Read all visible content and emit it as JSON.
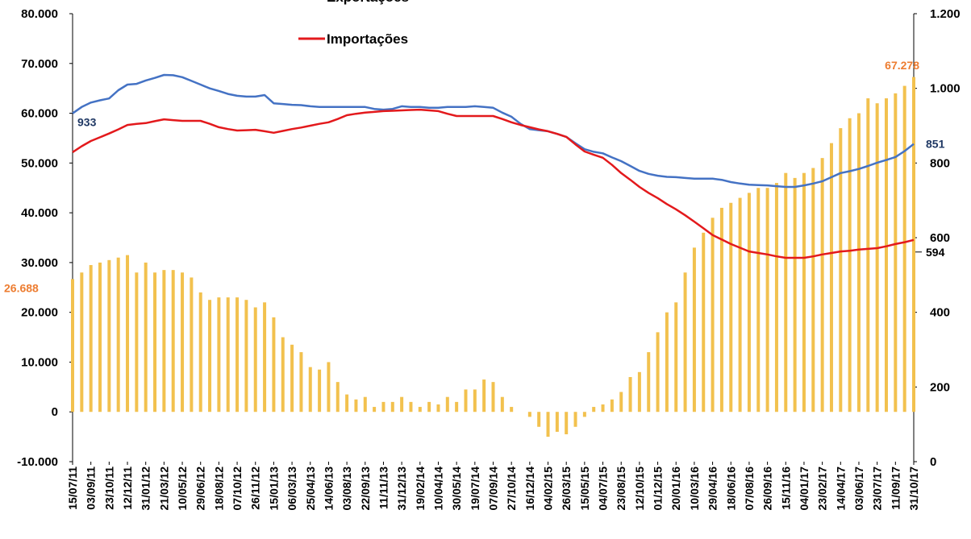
{
  "chart_data": {
    "type": "combo",
    "categories": [
      "15/07/11",
      null,
      "03/09/11",
      null,
      "23/10/11",
      null,
      "12/12/11",
      null,
      "31/01/12",
      null,
      "21/03/12",
      null,
      "10/05/12",
      null,
      "29/06/12",
      null,
      "18/08/12",
      null,
      "07/10/12",
      null,
      "26/11/12",
      null,
      "15/01/13",
      null,
      "06/03/13",
      null,
      "25/04/13",
      null,
      "14/06/13",
      null,
      "03/08/13",
      null,
      "22/09/13",
      null,
      "11/11/13",
      null,
      "31/12/13",
      null,
      "19/02/14",
      null,
      "10/04/14",
      null,
      "30/05/14",
      null,
      "19/07/14",
      null,
      "07/09/14",
      null,
      "27/10/14",
      null,
      "16/12/14",
      null,
      "04/02/15",
      null,
      "26/03/15",
      null,
      "15/05/15",
      null,
      "04/07/15",
      null,
      "23/08/15",
      null,
      "12/10/15",
      null,
      "01/12/15",
      null,
      "20/01/16",
      null,
      "10/03/16",
      null,
      "29/04/16",
      null,
      "18/06/16",
      null,
      "07/08/16",
      null,
      "26/09/16",
      null,
      "15/11/16",
      null,
      "04/01/17",
      null,
      "23/02/17",
      null,
      "14/04/17",
      null,
      "03/06/17",
      null,
      "23/07/17",
      null,
      "11/09/17",
      null,
      "31/10/17"
    ],
    "ylim": [
      -10000,
      80000
    ],
    "yticks": [
      {
        "value": -10000,
        "label": "-10.000"
      },
      0,
      {
        "value": 10000,
        "label": "10.000"
      },
      {
        "value": 20000,
        "label": "20.000"
      },
      {
        "value": 30000,
        "label": "30.000"
      },
      {
        "value": 40000,
        "label": "40.000"
      },
      {
        "value": 50000,
        "label": "50.000"
      },
      {
        "value": 60000,
        "label": "60.000"
      },
      {
        "value": 70000,
        "label": "70.000"
      },
      {
        "value": 80000,
        "label": "80.000"
      }
    ],
    "y2lim": [
      0,
      1200
    ],
    "y2ticks": [
      0,
      200,
      400,
      600,
      800,
      {
        "value": 1000,
        "label": "1.000"
      },
      {
        "value": 1200,
        "label": "1.200"
      }
    ],
    "series": [
      {
        "type": "bar",
        "color": "#f2c14e",
        "values": [
          26688,
          28000,
          29500,
          30000,
          30500,
          31000,
          31500,
          28000,
          30000,
          28000,
          28500,
          28500,
          28000,
          27000,
          24000,
          22500,
          23000,
          23000,
          23000,
          22500,
          21000,
          22000,
          19000,
          15000,
          13500,
          12000,
          9000,
          8500,
          10000,
          6000,
          3500,
          2500,
          3000,
          1000,
          2000,
          2000,
          3000,
          2000,
          1000,
          2000,
          1500,
          3000,
          2000,
          4500,
          4500,
          6500,
          6000,
          3000,
          1000,
          0,
          -1000,
          -3000,
          -5000,
          -4000,
          -4500,
          -3000,
          -1000,
          1000,
          1500,
          2500,
          4000,
          7000,
          8000,
          12000,
          16000,
          20000,
          22000,
          28000,
          33000,
          36000,
          39000,
          41000,
          42000,
          43000,
          44000,
          45000,
          45000,
          46000,
          48000,
          47000,
          48000,
          49000,
          51000,
          54000,
          57000,
          59000,
          60000,
          63000,
          62000,
          63000,
          64000,
          65500,
          67278
        ],
        "value_labels": [
          "26.688",
          null,
          null,
          null,
          null,
          null,
          null,
          null,
          null,
          null,
          null,
          null,
          null,
          null,
          null,
          null,
          null,
          null,
          null,
          null,
          null,
          null,
          null,
          null,
          null,
          null,
          null,
          null,
          null,
          null,
          null,
          null,
          null,
          null,
          null,
          null,
          null,
          null,
          null,
          null,
          null,
          null,
          null,
          null,
          null,
          null,
          null,
          null,
          null,
          null,
          null,
          null,
          null,
          null,
          null,
          null,
          null,
          null,
          null,
          null,
          null,
          null,
          null,
          null,
          null,
          null,
          null,
          null,
          null,
          null,
          null,
          null,
          null,
          null,
          null,
          null,
          null,
          null,
          null,
          null,
          null,
          null,
          null,
          null,
          null,
          null,
          null,
          null,
          null,
          null,
          null,
          null,
          "67.278"
        ]
      },
      {
        "type": "line",
        "name": "Exportações",
        "color": "#4472c4",
        "axis": "y2",
        "values": [
          933,
          950,
          962,
          968,
          973,
          995,
          1010,
          1012,
          1021,
          1028,
          1036,
          1035,
          1030,
          1020,
          1010,
          1000,
          993,
          985,
          980,
          978,
          978,
          982,
          960,
          958,
          956,
          955,
          952,
          950,
          950,
          950,
          950,
          950,
          950,
          945,
          943,
          945,
          952,
          950,
          950,
          948,
          948,
          950,
          950,
          950,
          952,
          950,
          948,
          935,
          924,
          905,
          891,
          888,
          885,
          878,
          870,
          853,
          837,
          830,
          826,
          815,
          805,
          792,
          779,
          771,
          766,
          763,
          762,
          760,
          758,
          758,
          758,
          755,
          749,
          745,
          742,
          741,
          740,
          738,
          736,
          736,
          740,
          745,
          751,
          762,
          773,
          778,
          784,
          792,
          801,
          808,
          816,
          832,
          851
        ],
        "value_labels": [
          "933",
          null,
          null,
          null,
          null,
          null,
          null,
          null,
          null,
          null,
          null,
          null,
          null,
          null,
          null,
          null,
          null,
          null,
          null,
          null,
          null,
          null,
          null,
          null,
          null,
          null,
          null,
          null,
          null,
          null,
          null,
          null,
          null,
          null,
          null,
          null,
          null,
          null,
          null,
          null,
          null,
          null,
          null,
          null,
          null,
          null,
          null,
          null,
          null,
          null,
          null,
          null,
          null,
          null,
          null,
          null,
          null,
          null,
          null,
          null,
          null,
          null,
          null,
          null,
          null,
          null,
          null,
          null,
          null,
          null,
          null,
          null,
          null,
          null,
          null,
          null,
          null,
          null,
          null,
          null,
          null,
          null,
          null,
          null,
          null,
          null,
          null,
          null,
          null,
          null,
          null,
          null,
          "851"
        ]
      },
      {
        "type": "line",
        "name": "Importações",
        "color": "#e3191c",
        "axis": "y2",
        "values": [
          829,
          845,
          859,
          869,
          879,
          890,
          902,
          905,
          907,
          912,
          917,
          915,
          913,
          913,
          913,
          905,
          896,
          891,
          887,
          888,
          889,
          885,
          881,
          886,
          891,
          895,
          900,
          905,
          909,
          918,
          928,
          932,
          935,
          937,
          939,
          940,
          941,
          942,
          943,
          941,
          939,
          932,
          926,
          926,
          926,
          926,
          926,
          918,
          909,
          902,
          896,
          890,
          885,
          878,
          870,
          850,
          831,
          822,
          814,
          795,
          773,
          755,
          736,
          720,
          706,
          690,
          676,
          660,
          643,
          625,
          607,
          595,
          583,
          573,
          563,
          559,
          555,
          550,
          546,
          546,
          546,
          550,
          555,
          559,
          563,
          565,
          568,
          570,
          572,
          577,
          583,
          588,
          594
        ],
        "value_labels": [
          null,
          null,
          null,
          null,
          null,
          null,
          null,
          null,
          null,
          null,
          null,
          null,
          null,
          null,
          null,
          null,
          null,
          null,
          null,
          null,
          null,
          null,
          null,
          null,
          null,
          null,
          null,
          null,
          null,
          null,
          null,
          null,
          null,
          null,
          null,
          null,
          null,
          null,
          null,
          null,
          null,
          null,
          null,
          null,
          null,
          null,
          null,
          null,
          null,
          null,
          null,
          null,
          null,
          null,
          null,
          null,
          null,
          null,
          null,
          null,
          null,
          null,
          null,
          null,
          null,
          null,
          null,
          null,
          null,
          null,
          null,
          null,
          null,
          null,
          null,
          null,
          null,
          null,
          null,
          null,
          null,
          null,
          null,
          null,
          null,
          null,
          null,
          null,
          null,
          null,
          null,
          null,
          "594"
        ]
      }
    ]
  }
}
